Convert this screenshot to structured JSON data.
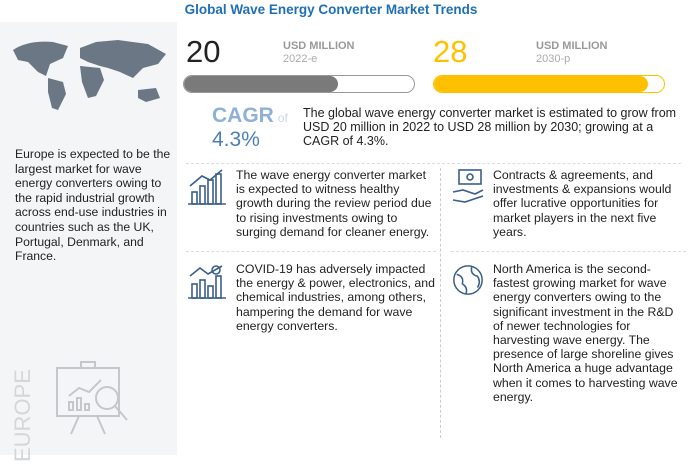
{
  "title": "Global Wave Energy Converter Market Trends",
  "left_panel": {
    "text": "Europe is expected to be the largest market for wave energy converters owing to the rapid industrial growth across end-use industries in countries such as the UK, Portugal, Denmark, and France.",
    "region_label": "EUROPE"
  },
  "stats": [
    {
      "value": "20",
      "unit": "USD MILLION",
      "year": "2022-e",
      "bar_fill_pct": 67,
      "color": "#7a7a7a"
    },
    {
      "value": "28",
      "unit": "USD MILLION",
      "year": "2030-p",
      "bar_fill_pct": 93,
      "color": "#ffc000"
    }
  ],
  "cagr": {
    "label": "CAGR",
    "of": "of",
    "value": "4.3%",
    "description": "The global wave energy converter market is estimated to grow from USD 20 million in 2022 to USD 28 million by 2030; growing at a CAGR of 4.3%."
  },
  "insights": [
    {
      "icon": "growth-chart-icon",
      "text": "The wave energy converter market is expected to witness healthy growth during the review period due to rising investments owing to surging demand for cleaner energy."
    },
    {
      "icon": "money-hand-icon",
      "text": "Contracts & agreements, and investments & expansions would offer lucrative opportunities for market players in the next five years."
    },
    {
      "icon": "declining-chart-icon",
      "text": "COVID-19 has adversely impacted the energy & power, electronics, and chemical industries, among others, hampering the demand for wave energy converters."
    },
    {
      "icon": "globe-icon",
      "text": "North America is the second-fastest growing market for wave energy converters owing to the significant investment in the R&D of newer technologies for harvesting wave energy. The presence of large shoreline gives North America a huge advantage when it comes to harvesting wave energy."
    }
  ]
}
